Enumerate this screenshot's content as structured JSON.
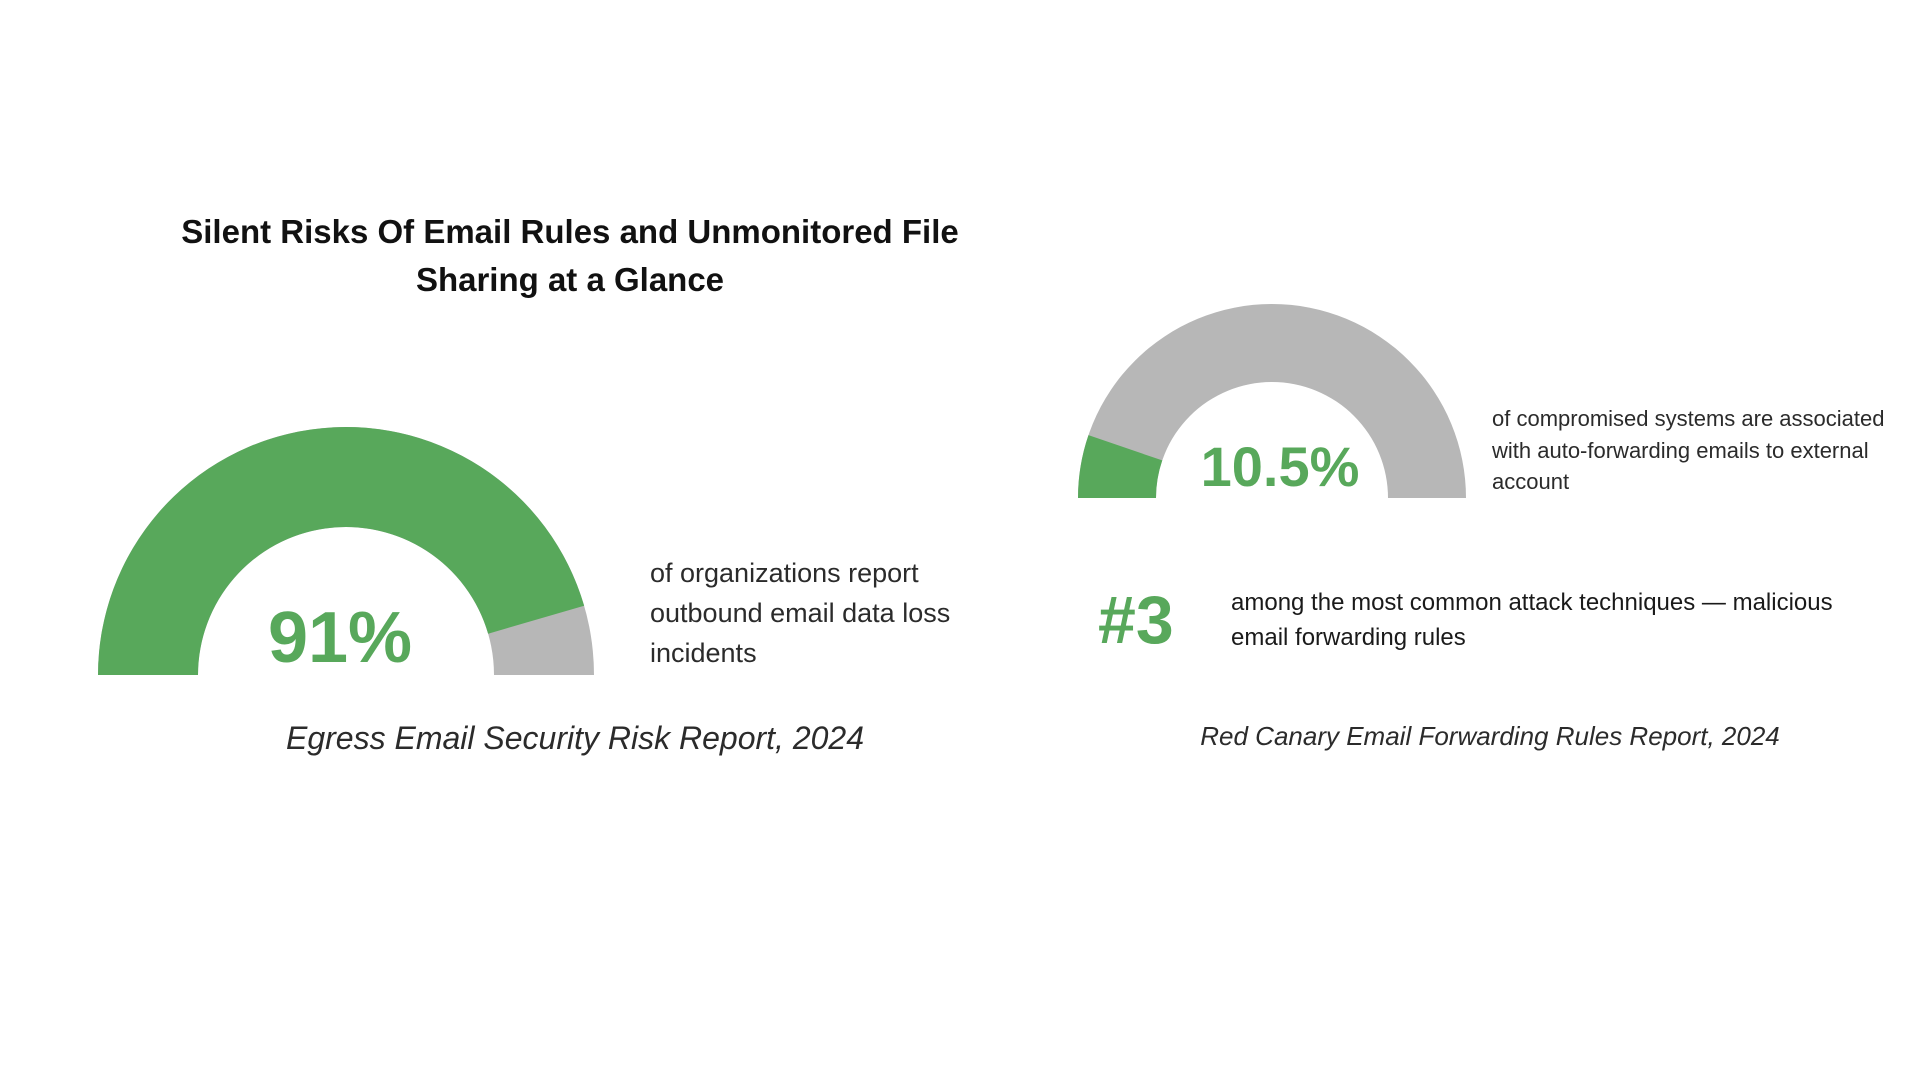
{
  "title": "Silent Risks Of Email Rules and Unmonitored File Sharing at a Glance",
  "colors": {
    "accent": "#58a85b",
    "remainder": "#b7b7b7",
    "text": "#2b2b2b"
  },
  "chart_data": [
    {
      "type": "gauge",
      "value": 91,
      "max": 100,
      "value_label": "91%",
      "description": "of organizations report outbound email data loss incidents",
      "source": "Egress Email Security Risk Report, 2024"
    },
    {
      "type": "gauge",
      "value": 10.5,
      "max": 100,
      "value_label": "10.5%",
      "description": "of compromised systems are associated with auto-forwarding emails to external account",
      "source": "Red Canary Email Forwarding Rules Report, 2024"
    }
  ],
  "ranking": {
    "value": "#3",
    "description": "among the most common attack techniques — malicious email forwarding rules"
  }
}
